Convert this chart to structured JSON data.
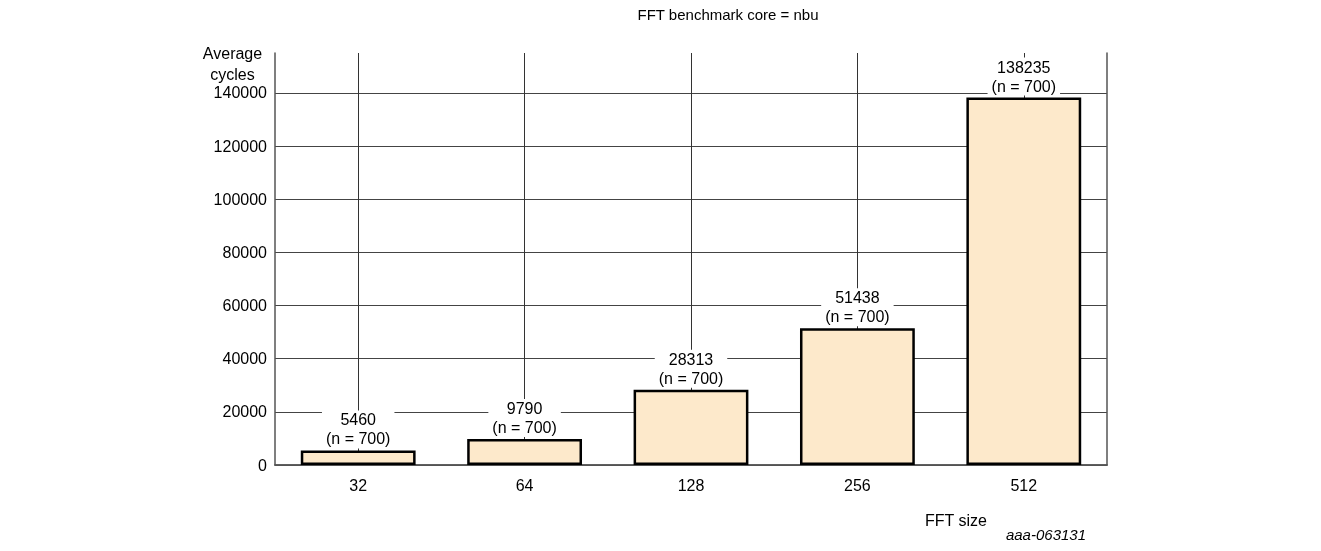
{
  "chart_data": {
    "type": "bar",
    "title": "FFT benchmark core = nbu",
    "xlabel": "FFT size",
    "ylabel": "Average cycles",
    "categories": [
      "32",
      "64",
      "128",
      "256",
      "512"
    ],
    "values": [
      5460,
      9790,
      28313,
      51438,
      138235
    ],
    "value_labels": [
      "5460\n(n = 700)",
      "9790\n(n = 700)",
      "28313\n(n = 700)",
      "51438\n(n = 700)",
      "138235\n(n = 700)"
    ],
    "color": "#fde9cb",
    "ylim": [
      0,
      155000
    ],
    "yticks": [
      0,
      20000,
      40000,
      60000,
      80000,
      100000,
      120000,
      140000
    ],
    "grid": true,
    "annotations": [
      "aaa-063131"
    ]
  }
}
